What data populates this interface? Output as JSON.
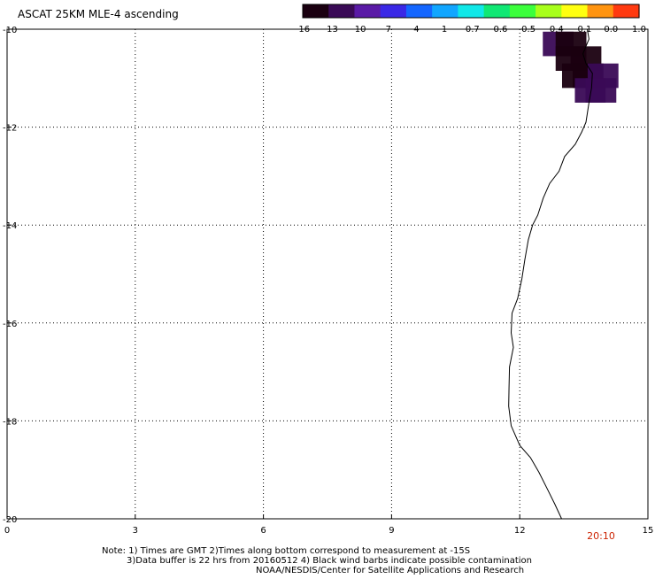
{
  "title": "ASCAT 25KM MLE-4 ascending",
  "colorbar": {
    "labels": [
      "-16",
      "-13",
      "-10",
      "-7",
      "-4",
      "-1",
      "-0.7",
      "-0.6",
      "-0.5",
      "-0.4",
      "-0.1",
      "0.0",
      "1.0"
    ],
    "colors": [
      "#1a0010",
      "#3a0a56",
      "#5a1aa6",
      "#3a28e6",
      "#1466ff",
      "#11a6ff",
      "#10e8e8",
      "#10e874",
      "#3cff3c",
      "#a8ff1a",
      "#ffff10",
      "#ff9410",
      "#ff3a10"
    ]
  },
  "axes": {
    "y_ticks": [
      "-10",
      "-12",
      "-14",
      "-16",
      "-18",
      "-20"
    ],
    "x_ticks": [
      "0",
      "3",
      "6",
      "9",
      "12",
      "15"
    ]
  },
  "time_label": "20:10",
  "notes": {
    "line1": "Note: 1) Times are GMT 2)Times along bottom correspond to measurement at -15S",
    "line2": "3)Data buffer is 22 hrs from 20160512 4) Black wind barbs indicate possible contamination",
    "line3": "NOAA/NESDIS/Center for Satellite Applications and Research"
  },
  "chart_data": {
    "type": "heatmap",
    "title": "ASCAT 25KM MLE-4 ascending",
    "xlim": [
      0,
      15
    ],
    "ylim": [
      -20,
      -10
    ],
    "grid": true,
    "coastline": [
      [
        13.58,
        -10.0
      ],
      [
        13.62,
        -10.2
      ],
      [
        13.48,
        -10.5
      ],
      [
        13.55,
        -10.7
      ],
      [
        13.7,
        -10.9
      ],
      [
        13.68,
        -11.2
      ],
      [
        13.62,
        -11.5
      ],
      [
        13.55,
        -11.9
      ],
      [
        13.45,
        -12.1
      ],
      [
        13.3,
        -12.35
      ],
      [
        13.05,
        -12.6
      ],
      [
        12.92,
        -12.9
      ],
      [
        12.7,
        -13.15
      ],
      [
        12.55,
        -13.45
      ],
      [
        12.42,
        -13.8
      ],
      [
        12.3,
        -14.0
      ],
      [
        12.2,
        -14.3
      ],
      [
        12.12,
        -14.7
      ],
      [
        12.05,
        -15.1
      ],
      [
        11.95,
        -15.5
      ],
      [
        11.82,
        -15.8
      ],
      [
        11.8,
        -16.2
      ],
      [
        11.85,
        -16.5
      ],
      [
        11.76,
        -16.9
      ],
      [
        11.75,
        -17.3
      ],
      [
        11.74,
        -17.7
      ],
      [
        11.8,
        -18.1
      ],
      [
        12.0,
        -18.5
      ],
      [
        12.25,
        -18.75
      ],
      [
        12.45,
        -19.05
      ],
      [
        12.65,
        -19.4
      ],
      [
        12.82,
        -19.7
      ],
      [
        12.98,
        -20.0
      ]
    ],
    "cells": [
      {
        "x": 12.9,
        "y": -10.3,
        "value": -13
      },
      {
        "x": 13.2,
        "y": -10.3,
        "value": -16
      },
      {
        "x": 13.2,
        "y": -10.6,
        "value": -16
      },
      {
        "x": 13.55,
        "y": -10.6,
        "value": -16
      },
      {
        "x": 13.35,
        "y": -10.95,
        "value": -16
      },
      {
        "x": 13.6,
        "y": -10.95,
        "value": -16
      },
      {
        "x": 13.95,
        "y": -10.95,
        "value": -13
      },
      {
        "x": 13.65,
        "y": -11.25,
        "value": -13
      },
      {
        "x": 13.9,
        "y": -11.25,
        "value": -13
      }
    ]
  }
}
